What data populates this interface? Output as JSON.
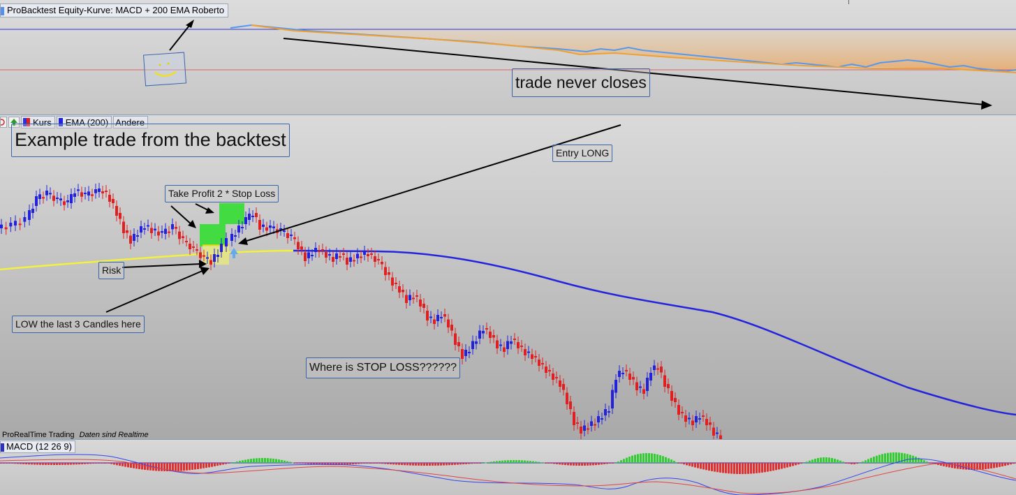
{
  "equity": {
    "title": "ProBacktest Equity-Kurve: MACD + 200 EMA Roberto",
    "annotation": "trade never closes",
    "smiley_face": ": )"
  },
  "price": {
    "legend": {
      "kurs_label": "Kurs",
      "ema_label": "EMA (200)",
      "andere_label": "Andere"
    },
    "annotations": {
      "example_title": "Example trade from the backtest",
      "entry": "Entry LONG",
      "take_profit": "Take Profit 2 * Stop Loss",
      "risk": "Risk",
      "low_candles": "LOW the last 3 Candles here",
      "stop_loss_question": "Where is STOP LOSS??????"
    },
    "footer": {
      "brand": "ProRealTime Trading",
      "status": "Daten sind Realtime"
    }
  },
  "macd": {
    "title": "MACD (12 26 9)"
  },
  "colors": {
    "bull_candle": "#2222dd",
    "bear_candle": "#e02020",
    "ema_line": "#2020e0",
    "ema_yellow": "#f4f040",
    "take_profit_box": "#33dd33",
    "risk_box": "#e8e880",
    "equity_up": "#5599ee",
    "equity_down": "#f0a030",
    "macd_pos": "#33cc33",
    "macd_neg": "#e03030"
  }
}
